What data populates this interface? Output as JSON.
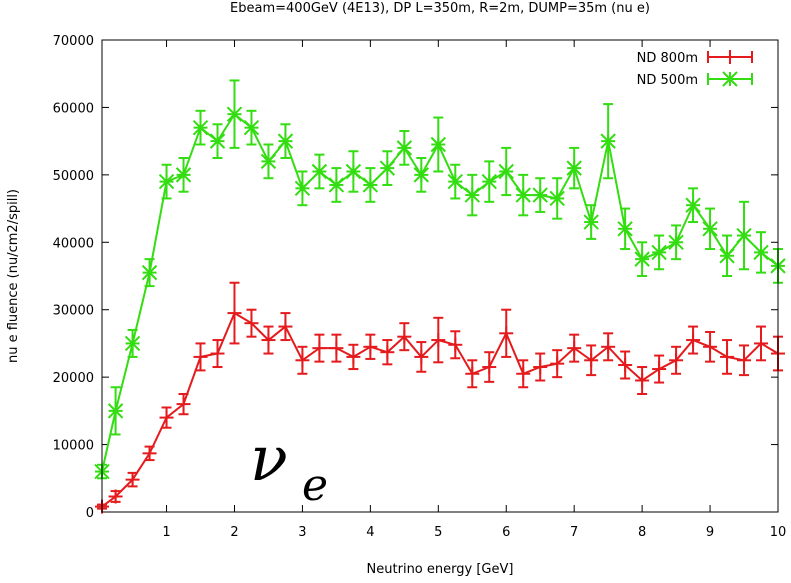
{
  "chart_data": {
    "type": "line",
    "title": "Ebeam=400GeV (4E13), DP L=350m, R=2m, DUMP=35m (nu e)",
    "xlabel": "Neutrino energy [GeV]",
    "ylabel": "nu e fluence (nu/cm2/spill)",
    "xlim": [
      0.05,
      10
    ],
    "ylim": [
      0,
      70000
    ],
    "xticks": [
      1,
      2,
      3,
      4,
      5,
      6,
      7,
      8,
      9,
      10
    ],
    "yticks": [
      0,
      10000,
      20000,
      30000,
      40000,
      50000,
      60000,
      70000
    ],
    "grid": false,
    "legend_position": "top-right",
    "annotation": {
      "symbol": "ν",
      "subscript": "e"
    },
    "x": [
      0.05,
      0.25,
      0.5,
      0.75,
      1.0,
      1.25,
      1.5,
      1.75,
      2.0,
      2.25,
      2.5,
      2.75,
      3.0,
      3.25,
      3.5,
      3.75,
      4.0,
      4.25,
      4.5,
      4.75,
      5.0,
      5.25,
      5.5,
      5.75,
      6.0,
      6.25,
      6.5,
      6.75,
      7.0,
      7.25,
      7.5,
      7.75,
      8.0,
      8.25,
      8.5,
      8.75,
      9.0,
      9.25,
      9.5,
      9.75,
      10.0
    ],
    "series": [
      {
        "name": "ND 800m",
        "color": "#e41a1c",
        "values": [
          800,
          2300,
          4800,
          8700,
          14000,
          16000,
          23000,
          23500,
          29500,
          28000,
          25500,
          27500,
          22500,
          24300,
          24300,
          23000,
          24500,
          23700,
          26000,
          23000,
          25500,
          24800,
          20500,
          21500,
          26500,
          20500,
          21500,
          22000,
          24300,
          22500,
          24500,
          21800,
          19500,
          21200,
          22500,
          25500,
          24500,
          23000,
          22500,
          25000,
          23500
        ],
        "errors": [
          300,
          800,
          1000,
          1000,
          1500,
          1500,
          2000,
          2000,
          4500,
          2000,
          2000,
          2000,
          2000,
          2000,
          2000,
          1800,
          1800,
          1800,
          2000,
          2200,
          3300,
          2000,
          2000,
          2200,
          3500,
          2000,
          2000,
          2000,
          2000,
          2200,
          2000,
          2000,
          2000,
          2000,
          2000,
          2000,
          2200,
          2500,
          2200,
          2500,
          2500
        ]
      },
      {
        "name": "ND 500m",
        "color": "#33dd11",
        "values": [
          6000,
          15000,
          25000,
          35500,
          49000,
          50000,
          57000,
          55000,
          59000,
          57000,
          52000,
          55000,
          48000,
          50500,
          48500,
          50500,
          48500,
          51000,
          54000,
          50000,
          54500,
          49000,
          47000,
          49000,
          50500,
          47000,
          47000,
          46500,
          51000,
          43000,
          55000,
          42000,
          37500,
          38500,
          40000,
          45500,
          42000,
          38000,
          41000,
          38500,
          36500
        ],
        "errors": [
          1000,
          3500,
          2000,
          2000,
          2500,
          2500,
          2500,
          2500,
          5000,
          2500,
          2500,
          2500,
          2500,
          2500,
          2500,
          3000,
          2500,
          2500,
          2500,
          2500,
          4000,
          2500,
          3000,
          3000,
          3500,
          3000,
          2500,
          3000,
          3000,
          2500,
          5500,
          3000,
          2500,
          2500,
          2500,
          2500,
          3000,
          3000,
          5000,
          3000,
          2500
        ]
      }
    ]
  }
}
